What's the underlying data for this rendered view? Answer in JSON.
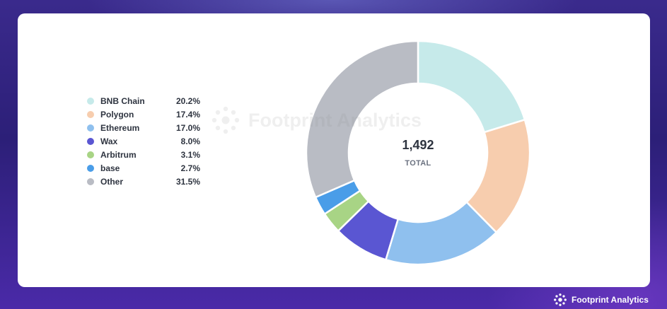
{
  "chart_data": {
    "type": "pie",
    "variant": "donut",
    "total": "1,492",
    "total_label": "TOTAL",
    "slices": [
      {
        "label": "BNB Chain",
        "pct": "20.2%",
        "value": 20.2,
        "color": "#c6eaea"
      },
      {
        "label": "Polygon",
        "pct": "17.4%",
        "value": 17.4,
        "color": "#f7cdae"
      },
      {
        "label": "Ethereum",
        "pct": "17.0%",
        "value": 17.0,
        "color": "#8fc0ee"
      },
      {
        "label": "Wax",
        "pct": "8.0%",
        "value": 8.0,
        "color": "#5a56d2"
      },
      {
        "label": "Arbitrum",
        "pct": "3.1%",
        "value": 3.1,
        "color": "#a8d485"
      },
      {
        "label": "base",
        "pct": "2.7%",
        "value": 2.7,
        "color": "#4a9de8"
      },
      {
        "label": "Other",
        "pct": "31.5%",
        "value": 31.5,
        "color": "#b9bcc4"
      }
    ],
    "legend_position": "left"
  },
  "watermark": {
    "text": "Footprint Analytics",
    "icon": "footprint-logo-icon"
  },
  "branding": {
    "text": "Footprint Analytics",
    "icon": "footprint-logo-icon"
  }
}
